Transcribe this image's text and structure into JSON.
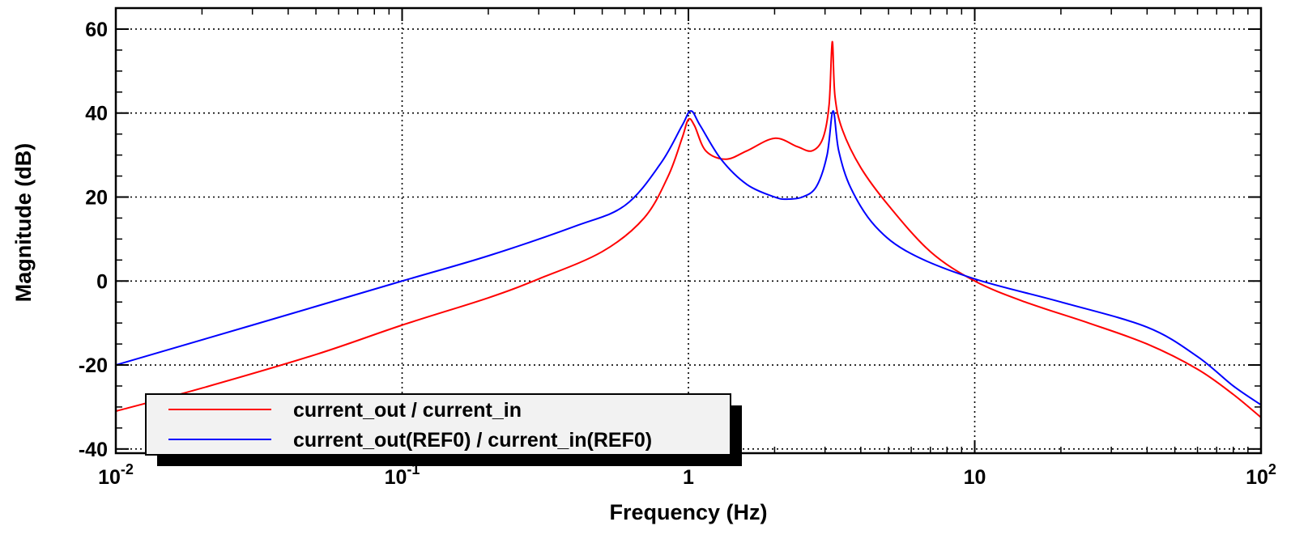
{
  "chart_data": {
    "type": "line",
    "title": "",
    "xlabel": "Frequency (Hz)",
    "ylabel": "Magnitude (dB)",
    "xscale": "log",
    "xlim": [
      0.01,
      100
    ],
    "ylim": [
      -41,
      65
    ],
    "grid": true,
    "legend_position": "bottom-left",
    "x_ticks": [
      {
        "value": 0.01,
        "base": "10",
        "exp": "-2"
      },
      {
        "value": 0.1,
        "base": "10",
        "exp": "-1"
      },
      {
        "value": 1,
        "base": "1",
        "exp": ""
      },
      {
        "value": 10,
        "base": "10",
        "exp": ""
      },
      {
        "value": 100,
        "base": "10",
        "exp": "2"
      }
    ],
    "y_ticks": [
      {
        "value": -40,
        "label": "-40"
      },
      {
        "value": -20,
        "label": "-20"
      },
      {
        "value": 0,
        "label": "0"
      },
      {
        "value": 20,
        "label": "20"
      },
      {
        "value": 40,
        "label": "40"
      },
      {
        "value": 60,
        "label": "60"
      }
    ],
    "series": [
      {
        "name": "current_out / current_in",
        "color": "#ff0000",
        "points": [
          [
            0.01,
            -31
          ],
          [
            0.02,
            -25.5
          ],
          [
            0.05,
            -17.5
          ],
          [
            0.1,
            -10.5
          ],
          [
            0.2,
            -4
          ],
          [
            0.3,
            0.5
          ],
          [
            0.5,
            7
          ],
          [
            0.7,
            15
          ],
          [
            0.85,
            25
          ],
          [
            0.95,
            34
          ],
          [
            1.0,
            38.5
          ],
          [
            1.05,
            37
          ],
          [
            1.15,
            31
          ],
          [
            1.35,
            29
          ],
          [
            1.6,
            31
          ],
          [
            2.0,
            34
          ],
          [
            2.4,
            32
          ],
          [
            2.7,
            31
          ],
          [
            2.95,
            34
          ],
          [
            3.1,
            42
          ],
          [
            3.18,
            57
          ],
          [
            3.25,
            44
          ],
          [
            3.45,
            36
          ],
          [
            4.0,
            27
          ],
          [
            5.0,
            18
          ],
          [
            7.0,
            7
          ],
          [
            10.0,
            0
          ],
          [
            15.0,
            -5
          ],
          [
            25.0,
            -10
          ],
          [
            40.0,
            -15
          ],
          [
            60.0,
            -21
          ],
          [
            80.0,
            -27
          ],
          [
            100.0,
            -32.5
          ]
        ]
      },
      {
        "name": "current_out(REF0) / current_in(REF0)",
        "color": "#0000ff",
        "points": [
          [
            0.01,
            -20
          ],
          [
            0.03,
            -10.5
          ],
          [
            0.1,
            0
          ],
          [
            0.2,
            6
          ],
          [
            0.4,
            13
          ],
          [
            0.6,
            18
          ],
          [
            0.8,
            28
          ],
          [
            0.95,
            37
          ],
          [
            1.02,
            40.5
          ],
          [
            1.1,
            37
          ],
          [
            1.3,
            29
          ],
          [
            1.6,
            23
          ],
          [
            2.0,
            20
          ],
          [
            2.2,
            19.5
          ],
          [
            2.5,
            20
          ],
          [
            2.8,
            22.5
          ],
          [
            3.05,
            30
          ],
          [
            3.2,
            40.5
          ],
          [
            3.35,
            31
          ],
          [
            3.7,
            22
          ],
          [
            4.5,
            13
          ],
          [
            6.0,
            6.5
          ],
          [
            10.0,
            0.5
          ],
          [
            20.0,
            -5
          ],
          [
            40.0,
            -11
          ],
          [
            60.0,
            -18
          ],
          [
            80.0,
            -25
          ],
          [
            100.0,
            -29.5
          ]
        ]
      }
    ]
  }
}
